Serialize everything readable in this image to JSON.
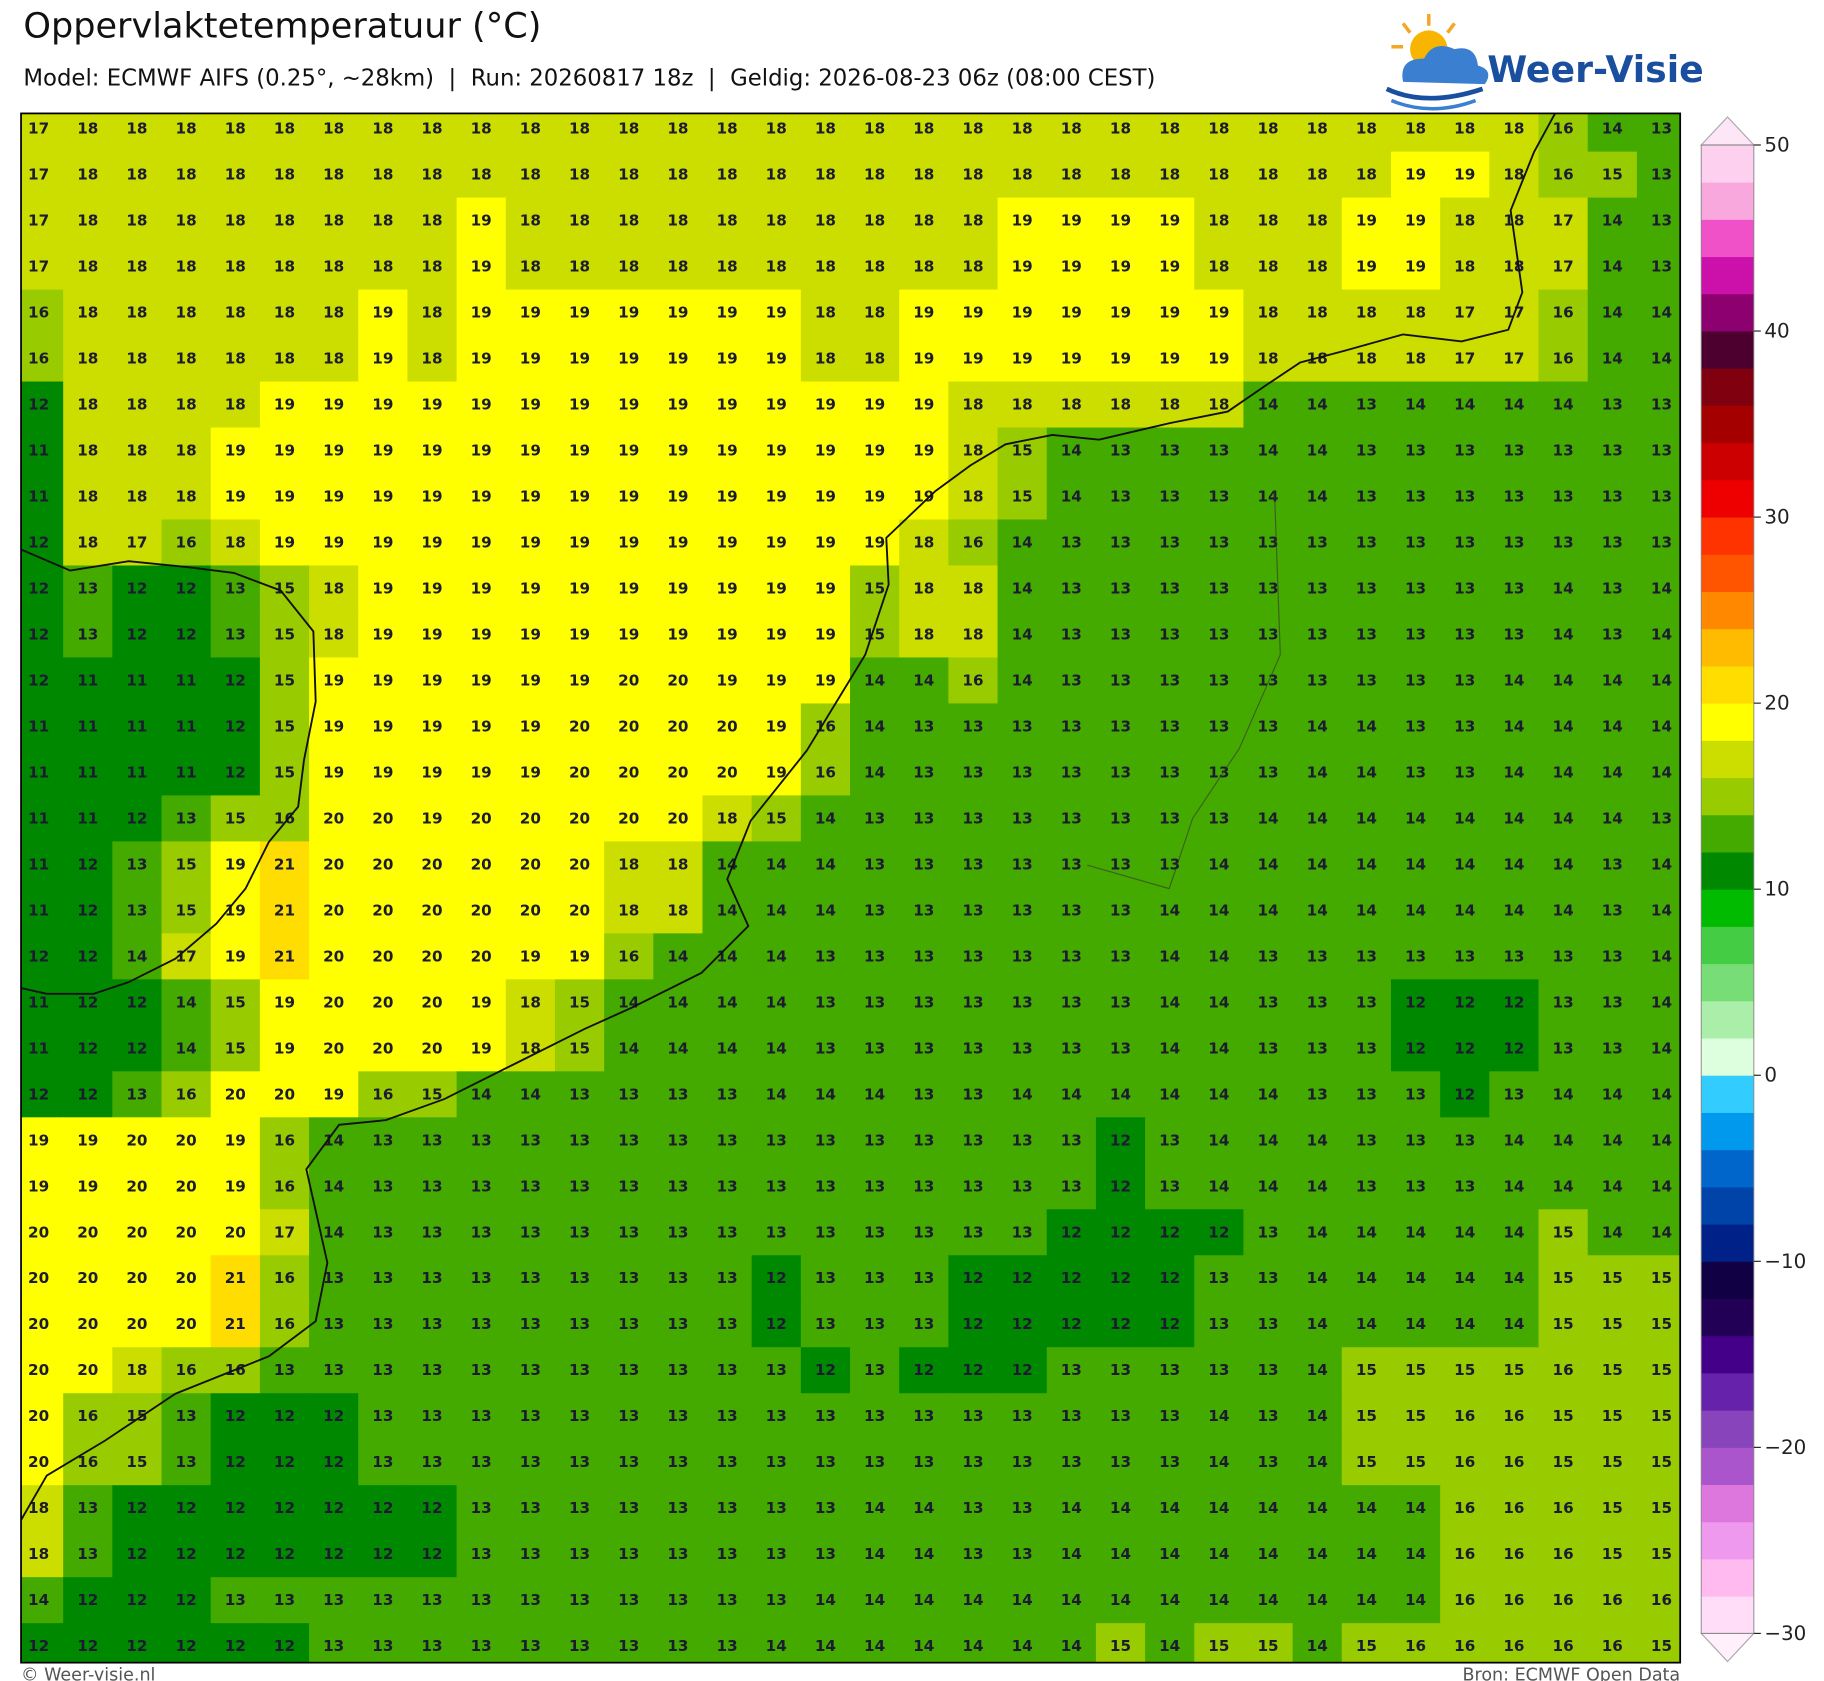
{
  "header": {
    "title": "Oppervlaktetemperatuur (°C)",
    "subtitle": "Model: ECMWF AIFS (0.25°, ~28km)  |  Run: 20260817 18z  |  Geldig: 2026-08-23 06z (08:00 CEST)"
  },
  "logo": {
    "text": "Weer-Visie"
  },
  "footer": {
    "left": "© Weer-visie.nl",
    "right": "Bron: ECMWF Open Data"
  },
  "colorbar": {
    "ticks": [
      50,
      40,
      30,
      20,
      10,
      0,
      {
        "value": -10,
        "label": "−10"
      },
      {
        "value": -20,
        "label": "−20"
      },
      {
        "value": -30,
        "label": "−30"
      }
    ],
    "colors": [
      "#ffddf8",
      "#ffbbf0",
      "#ee99ee",
      "#dd77dd",
      "#aa55cc",
      "#8844bb",
      "#6622aa",
      "#440088",
      "#220055",
      "#110044",
      "#002288",
      "#0044aa",
      "#0066cc",
      "#0099ee",
      "#33ccff",
      "#ddffdd",
      "#aaeeaa",
      "#77dd77",
      "#44cc44",
      "#00bb00",
      "#008800",
      "#44aa00",
      "#99cc00",
      "#ccdd00",
      "#ffff00",
      "#ffdd00",
      "#ffbb00",
      "#ff8800",
      "#ff5500",
      "#ff3300",
      "#ee0000",
      "#cc0000",
      "#a50000",
      "#800010",
      "#4d0030",
      "#8c0070",
      "#cc10aa",
      "#f050c8",
      "#f8a8dc",
      "#fcd0ee"
    ],
    "over_color": "#fde6f6",
    "under_color": "#fff0fb"
  },
  "grid": {
    "rows": [
      [
        17,
        18,
        18,
        18,
        18,
        18,
        18,
        18,
        18,
        18,
        18,
        18,
        18,
        18,
        18,
        18,
        18,
        18,
        18,
        18,
        18,
        18,
        18,
        18,
        18,
        18,
        18,
        18,
        18,
        18,
        18,
        16,
        14,
        13
      ],
      [
        17,
        18,
        18,
        18,
        18,
        18,
        18,
        18,
        18,
        18,
        18,
        18,
        18,
        18,
        18,
        18,
        18,
        18,
        18,
        18,
        18,
        18,
        18,
        18,
        18,
        18,
        18,
        18,
        19,
        19,
        18,
        16,
        15,
        13
      ],
      [
        17,
        18,
        18,
        18,
        18,
        18,
        18,
        18,
        18,
        19,
        18,
        18,
        18,
        18,
        18,
        18,
        18,
        18,
        18,
        18,
        19,
        19,
        19,
        19,
        18,
        18,
        18,
        19,
        19,
        18,
        18,
        17,
        14,
        13
      ],
      [
        17,
        18,
        18,
        18,
        18,
        18,
        18,
        18,
        18,
        19,
        18,
        18,
        18,
        18,
        18,
        18,
        18,
        18,
        18,
        18,
        19,
        19,
        19,
        19,
        18,
        18,
        18,
        19,
        19,
        18,
        18,
        17,
        14,
        13
      ],
      [
        16,
        18,
        18,
        18,
        18,
        18,
        18,
        19,
        18,
        19,
        19,
        19,
        19,
        19,
        19,
        19,
        18,
        18,
        19,
        19,
        19,
        19,
        19,
        19,
        19,
        18,
        18,
        18,
        18,
        17,
        17,
        16,
        14,
        14
      ],
      [
        16,
        18,
        18,
        18,
        18,
        18,
        18,
        19,
        18,
        19,
        19,
        19,
        19,
        19,
        19,
        19,
        18,
        18,
        19,
        19,
        19,
        19,
        19,
        19,
        19,
        18,
        18,
        18,
        18,
        17,
        17,
        16,
        14,
        14
      ],
      [
        12,
        18,
        18,
        18,
        18,
        19,
        19,
        19,
        19,
        19,
        19,
        19,
        19,
        19,
        19,
        19,
        19,
        19,
        19,
        18,
        18,
        18,
        18,
        18,
        18,
        14,
        14,
        13,
        14,
        14,
        14,
        14,
        13,
        13
      ],
      [
        11,
        18,
        18,
        18,
        19,
        19,
        19,
        19,
        19,
        19,
        19,
        19,
        19,
        19,
        19,
        19,
        19,
        19,
        19,
        18,
        15,
        14,
        13,
        13,
        13,
        14,
        14,
        13,
        13,
        13,
        13,
        13,
        13,
        13
      ],
      [
        11,
        18,
        18,
        18,
        19,
        19,
        19,
        19,
        19,
        19,
        19,
        19,
        19,
        19,
        19,
        19,
        19,
        19,
        19,
        18,
        15,
        14,
        13,
        13,
        13,
        14,
        14,
        13,
        13,
        13,
        13,
        13,
        13,
        13
      ],
      [
        12,
        18,
        17,
        16,
        18,
        19,
        19,
        19,
        19,
        19,
        19,
        19,
        19,
        19,
        19,
        19,
        19,
        19,
        18,
        16,
        14,
        13,
        13,
        13,
        13,
        13,
        13,
        13,
        13,
        13,
        13,
        13,
        13,
        13
      ],
      [
        12,
        13,
        12,
        12,
        13,
        15,
        18,
        19,
        19,
        19,
        19,
        19,
        19,
        19,
        19,
        19,
        19,
        15,
        18,
        18,
        14,
        13,
        13,
        13,
        13,
        13,
        13,
        13,
        13,
        13,
        13,
        14,
        13,
        14
      ],
      [
        12,
        13,
        12,
        12,
        13,
        15,
        18,
        19,
        19,
        19,
        19,
        19,
        19,
        19,
        19,
        19,
        19,
        15,
        18,
        18,
        14,
        13,
        13,
        13,
        13,
        13,
        13,
        13,
        13,
        13,
        13,
        14,
        13,
        14
      ],
      [
        12,
        11,
        11,
        11,
        12,
        15,
        19,
        19,
        19,
        19,
        19,
        19,
        20,
        20,
        19,
        19,
        19,
        14,
        14,
        16,
        14,
        13,
        13,
        13,
        13,
        13,
        13,
        13,
        13,
        13,
        14,
        14,
        14,
        14
      ],
      [
        11,
        11,
        11,
        11,
        12,
        15,
        19,
        19,
        19,
        19,
        19,
        20,
        20,
        20,
        20,
        19,
        16,
        14,
        13,
        13,
        13,
        13,
        13,
        13,
        13,
        13,
        14,
        14,
        13,
        13,
        14,
        14,
        14,
        14
      ],
      [
        11,
        11,
        11,
        11,
        12,
        15,
        19,
        19,
        19,
        19,
        19,
        20,
        20,
        20,
        20,
        19,
        16,
        14,
        13,
        13,
        13,
        13,
        13,
        13,
        13,
        13,
        14,
        14,
        13,
        13,
        14,
        14,
        14,
        14
      ],
      [
        11,
        11,
        12,
        13,
        15,
        16,
        20,
        20,
        19,
        20,
        20,
        20,
        20,
        20,
        18,
        15,
        14,
        13,
        13,
        13,
        13,
        13,
        13,
        13,
        13,
        14,
        14,
        14,
        14,
        14,
        14,
        14,
        14,
        13
      ],
      [
        11,
        12,
        13,
        15,
        19,
        21,
        20,
        20,
        20,
        20,
        20,
        20,
        18,
        18,
        14,
        14,
        14,
        13,
        13,
        13,
        13,
        13,
        13,
        13,
        14,
        14,
        14,
        14,
        14,
        14,
        14,
        14,
        13,
        14
      ],
      [
        11,
        12,
        13,
        15,
        19,
        21,
        20,
        20,
        20,
        20,
        20,
        20,
        18,
        18,
        14,
        14,
        14,
        13,
        13,
        13,
        13,
        13,
        13,
        14,
        14,
        14,
        14,
        14,
        14,
        14,
        14,
        14,
        13,
        14
      ],
      [
        12,
        12,
        14,
        17,
        19,
        21,
        20,
        20,
        20,
        20,
        19,
        19,
        16,
        14,
        14,
        14,
        13,
        13,
        13,
        13,
        13,
        13,
        13,
        14,
        14,
        13,
        13,
        13,
        13,
        13,
        13,
        13,
        13,
        14
      ],
      [
        11,
        12,
        12,
        14,
        15,
        19,
        20,
        20,
        20,
        19,
        18,
        15,
        14,
        14,
        14,
        14,
        13,
        13,
        13,
        13,
        13,
        13,
        13,
        14,
        14,
        13,
        13,
        13,
        12,
        12,
        12,
        13,
        13,
        14
      ],
      [
        11,
        12,
        12,
        14,
        15,
        19,
        20,
        20,
        20,
        19,
        18,
        15,
        14,
        14,
        14,
        14,
        13,
        13,
        13,
        13,
        13,
        13,
        13,
        14,
        14,
        13,
        13,
        13,
        12,
        12,
        12,
        13,
        13,
        14
      ],
      [
        12,
        12,
        13,
        16,
        20,
        20,
        19,
        16,
        15,
        14,
        14,
        13,
        13,
        13,
        13,
        14,
        14,
        14,
        13,
        13,
        14,
        14,
        14,
        14,
        14,
        14,
        13,
        13,
        13,
        12,
        13,
        14,
        14,
        14
      ],
      [
        19,
        19,
        20,
        20,
        19,
        16,
        14,
        13,
        13,
        13,
        13,
        13,
        13,
        13,
        13,
        13,
        13,
        13,
        13,
        13,
        13,
        13,
        12,
        13,
        14,
        14,
        14,
        13,
        13,
        13,
        14,
        14,
        14,
        14
      ],
      [
        19,
        19,
        20,
        20,
        19,
        16,
        14,
        13,
        13,
        13,
        13,
        13,
        13,
        13,
        13,
        13,
        13,
        13,
        13,
        13,
        13,
        13,
        12,
        13,
        14,
        14,
        14,
        13,
        13,
        13,
        14,
        14,
        14,
        14
      ],
      [
        20,
        20,
        20,
        20,
        20,
        17,
        14,
        13,
        13,
        13,
        13,
        13,
        13,
        13,
        13,
        13,
        13,
        13,
        13,
        13,
        13,
        12,
        12,
        12,
        12,
        13,
        14,
        14,
        14,
        14,
        14,
        15,
        14,
        14
      ],
      [
        20,
        20,
        20,
        20,
        21,
        16,
        13,
        13,
        13,
        13,
        13,
        13,
        13,
        13,
        13,
        12,
        13,
        13,
        13,
        12,
        12,
        12,
        12,
        12,
        13,
        13,
        14,
        14,
        14,
        14,
        14,
        15,
        15,
        15
      ],
      [
        20,
        20,
        20,
        20,
        21,
        16,
        13,
        13,
        13,
        13,
        13,
        13,
        13,
        13,
        13,
        12,
        13,
        13,
        13,
        12,
        12,
        12,
        12,
        12,
        13,
        13,
        14,
        14,
        14,
        14,
        14,
        15,
        15,
        15
      ],
      [
        20,
        20,
        18,
        16,
        16,
        13,
        13,
        13,
        13,
        13,
        13,
        13,
        13,
        13,
        13,
        13,
        12,
        13,
        12,
        12,
        12,
        13,
        13,
        13,
        13,
        13,
        14,
        15,
        15,
        15,
        15,
        16,
        15,
        15
      ],
      [
        20,
        16,
        15,
        13,
        12,
        12,
        12,
        13,
        13,
        13,
        13,
        13,
        13,
        13,
        13,
        13,
        13,
        13,
        13,
        13,
        13,
        13,
        13,
        13,
        14,
        13,
        14,
        15,
        15,
        16,
        16,
        15,
        15,
        15
      ],
      [
        20,
        16,
        15,
        13,
        12,
        12,
        12,
        13,
        13,
        13,
        13,
        13,
        13,
        13,
        13,
        13,
        13,
        13,
        13,
        13,
        13,
        13,
        13,
        13,
        14,
        13,
        14,
        15,
        15,
        16,
        16,
        15,
        15,
        15
      ],
      [
        18,
        13,
        12,
        12,
        12,
        12,
        12,
        12,
        12,
        13,
        13,
        13,
        13,
        13,
        13,
        13,
        13,
        14,
        14,
        13,
        13,
        14,
        14,
        14,
        14,
        14,
        14,
        14,
        14,
        16,
        16,
        16,
        15,
        15
      ],
      [
        18,
        13,
        12,
        12,
        12,
        12,
        12,
        12,
        12,
        13,
        13,
        13,
        13,
        13,
        13,
        13,
        13,
        14,
        14,
        13,
        13,
        14,
        14,
        14,
        14,
        14,
        14,
        14,
        14,
        16,
        16,
        16,
        15,
        15
      ],
      [
        14,
        12,
        12,
        12,
        13,
        13,
        13,
        13,
        13,
        13,
        13,
        13,
        13,
        13,
        13,
        13,
        14,
        14,
        14,
        14,
        14,
        14,
        14,
        14,
        14,
        14,
        14,
        14,
        14,
        16,
        16,
        16,
        16,
        16
      ],
      [
        12,
        12,
        12,
        12,
        12,
        12,
        13,
        13,
        13,
        13,
        13,
        13,
        13,
        13,
        13,
        14,
        14,
        14,
        14,
        14,
        14,
        14,
        15,
        14,
        15,
        15,
        14,
        15,
        16,
        16,
        16,
        16,
        16,
        15
      ]
    ]
  }
}
